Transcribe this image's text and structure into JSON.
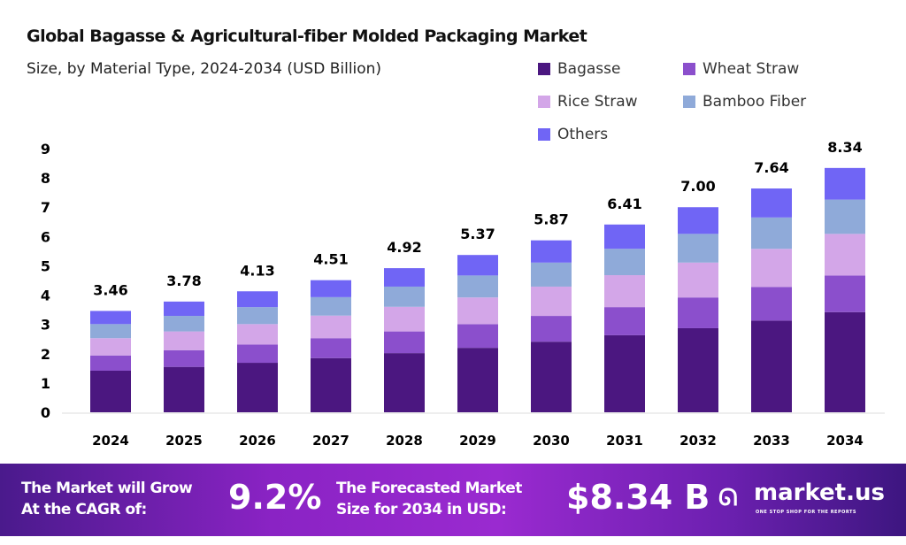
{
  "chart_data": {
    "type": "stacked-bar",
    "title": "Global Bagasse & Agricultural-fiber Molded Packaging Market",
    "subtitle": "Size, by Material Type, 2024-2034 (USD Billion)",
    "categories": [
      "2024",
      "2025",
      "2026",
      "2027",
      "2028",
      "2029",
      "2030",
      "2031",
      "2032",
      "2033",
      "2034"
    ],
    "series": [
      {
        "name": "Bagasse",
        "color": "#4b1780",
        "values": [
          1.42,
          1.55,
          1.69,
          1.85,
          2.02,
          2.2,
          2.41,
          2.63,
          2.87,
          3.13,
          3.42
        ]
      },
      {
        "name": "Wheat Straw",
        "color": "#8b4fcc",
        "values": [
          0.52,
          0.57,
          0.62,
          0.68,
          0.74,
          0.81,
          0.88,
          0.96,
          1.05,
          1.15,
          1.25
        ]
      },
      {
        "name": "Rice Straw",
        "color": "#d3a6e8",
        "values": [
          0.59,
          0.64,
          0.7,
          0.77,
          0.84,
          0.91,
          1.0,
          1.09,
          1.19,
          1.3,
          1.42
        ]
      },
      {
        "name": "Bamboo Fiber",
        "color": "#8faad9",
        "values": [
          0.48,
          0.53,
          0.58,
          0.63,
          0.69,
          0.75,
          0.82,
          0.9,
          0.98,
          1.07,
          1.17
        ]
      },
      {
        "name": "Others",
        "color": "#7065f5",
        "values": [
          0.45,
          0.49,
          0.54,
          0.58,
          0.63,
          0.7,
          0.76,
          0.83,
          0.91,
          0.99,
          1.08
        ]
      }
    ],
    "totals": [
      "3.46",
      "3.78",
      "4.13",
      "4.51",
      "4.92",
      "5.37",
      "5.87",
      "6.41",
      "7.00",
      "7.64",
      "8.34"
    ],
    "yticks": [
      "0",
      "1",
      "2",
      "3",
      "4",
      "5",
      "6",
      "7",
      "8",
      "9"
    ],
    "ylim": [
      0,
      9
    ],
    "grid": false,
    "legend": "top-right"
  },
  "banner": {
    "cagr_text_1": "The Market will Grow",
    "cagr_text_2": "At the CAGR of:",
    "cagr_value": "9.2%",
    "forecast_text_1": "The Forecasted Market",
    "forecast_text_2": "Size for 2034 in USD:",
    "forecast_value": "$8.34 B",
    "brand": "market.us",
    "brand_tagline": "ONE STOP SHOP FOR THE REPORTS"
  }
}
